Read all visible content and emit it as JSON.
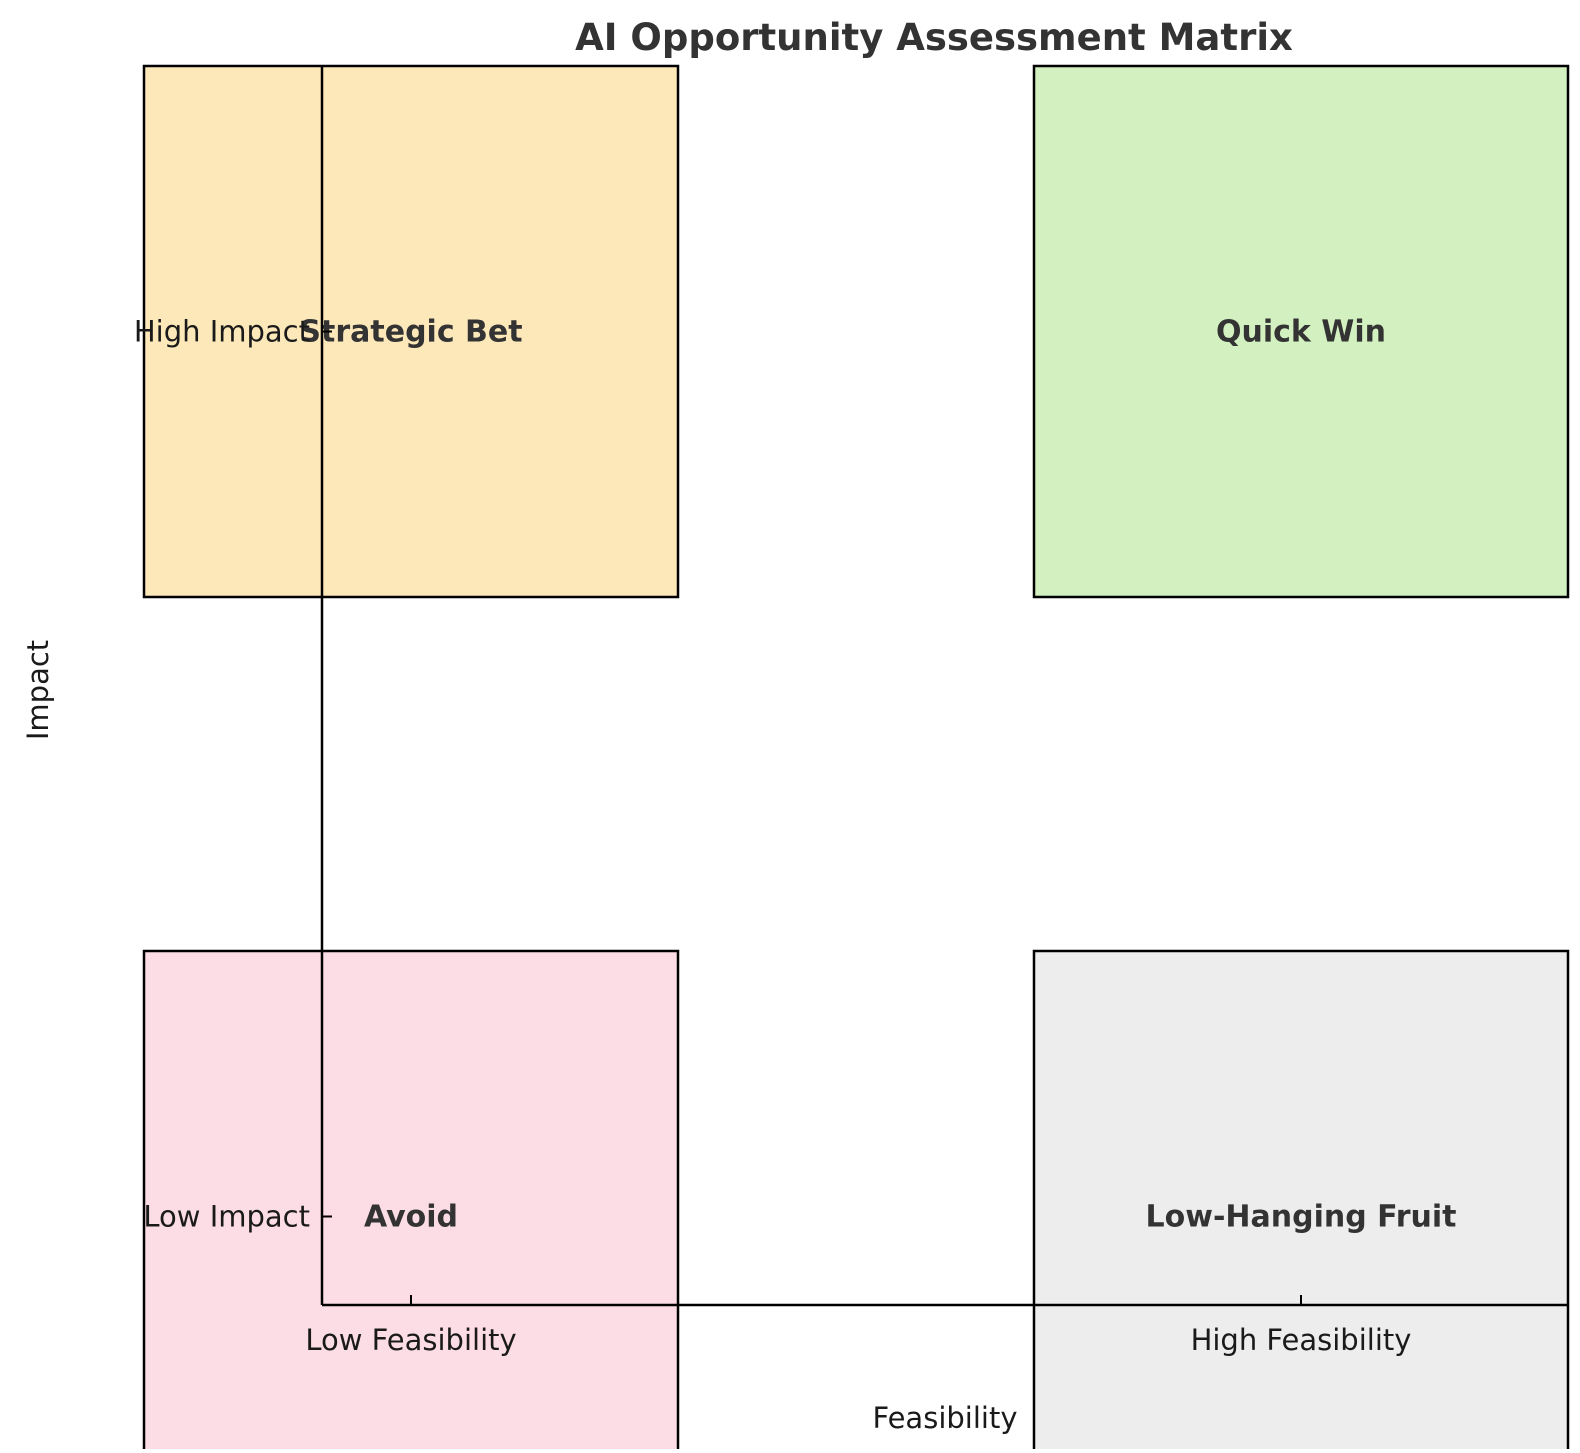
{
  "chart_data": {
    "type": "quadrant",
    "title": "AI Opportunity Assessment Matrix",
    "xlabel": "Feasibility",
    "ylabel": "Impact",
    "xlim": [
      -0.1,
      1.3
    ],
    "ylim": [
      -0.1,
      1.3
    ],
    "x_ticks": [
      {
        "value": 0,
        "label": "Low Feasibility"
      },
      {
        "value": 1,
        "label": "High Feasibility"
      }
    ],
    "y_ticks": [
      {
        "value": 0,
        "label": "Low Impact"
      },
      {
        "value": 1,
        "label": "High Impact"
      }
    ],
    "grid": false,
    "quadrants": [
      {
        "name": "Strategic Bet",
        "feasibility": 0,
        "impact": 1,
        "color": "#FDE8BA"
      },
      {
        "name": "Quick Win",
        "feasibility": 1,
        "impact": 1,
        "color": "#D2F0C0"
      },
      {
        "name": "Avoid",
        "feasibility": 0,
        "impact": 0,
        "color": "#FCDDE5"
      },
      {
        "name": "Low-Hanging Fruit",
        "feasibility": 1,
        "impact": 0,
        "color": "#EDEDED"
      }
    ]
  }
}
